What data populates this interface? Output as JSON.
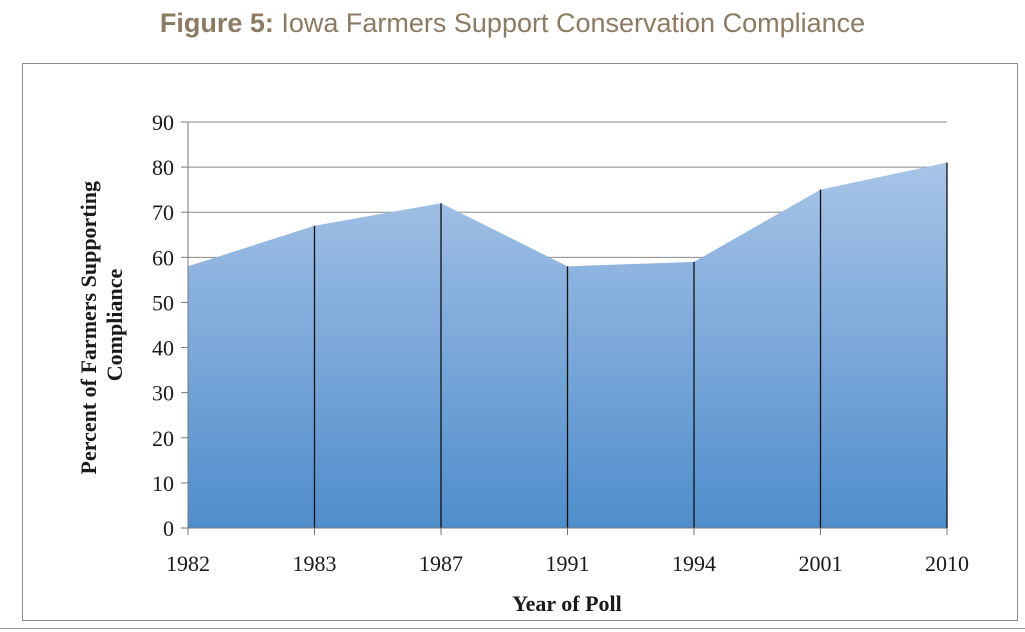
{
  "figure_title": {
    "prefix": "Figure 5:",
    "text": "Iowa Farmers Support Conservation Compliance"
  },
  "colors": {
    "title": "#8c7a62",
    "area_top": "#a8c4e8",
    "area_bottom": "#4f8dcb",
    "gridline": "#888888",
    "drop_line": "#111111"
  },
  "chart_data": {
    "type": "area",
    "title": "Figure 5: Iowa Farmers Support Conservation Compliance",
    "categories": [
      "1982",
      "1983",
      "1987",
      "1991",
      "1994",
      "2001",
      "2010"
    ],
    "series": [
      {
        "values": [
          58,
          67,
          72,
          58,
          59,
          75,
          81
        ]
      }
    ],
    "xlabel": "Year of Poll",
    "ylabel_lines": [
      "Percent of Farmers Supporting",
      "Compliance"
    ],
    "ylim": [
      0,
      90
    ],
    "yticks": [
      0,
      10,
      20,
      30,
      40,
      50,
      60,
      70,
      80,
      90
    ],
    "grid": true,
    "drop_lines": true,
    "gradient_fill": true
  }
}
